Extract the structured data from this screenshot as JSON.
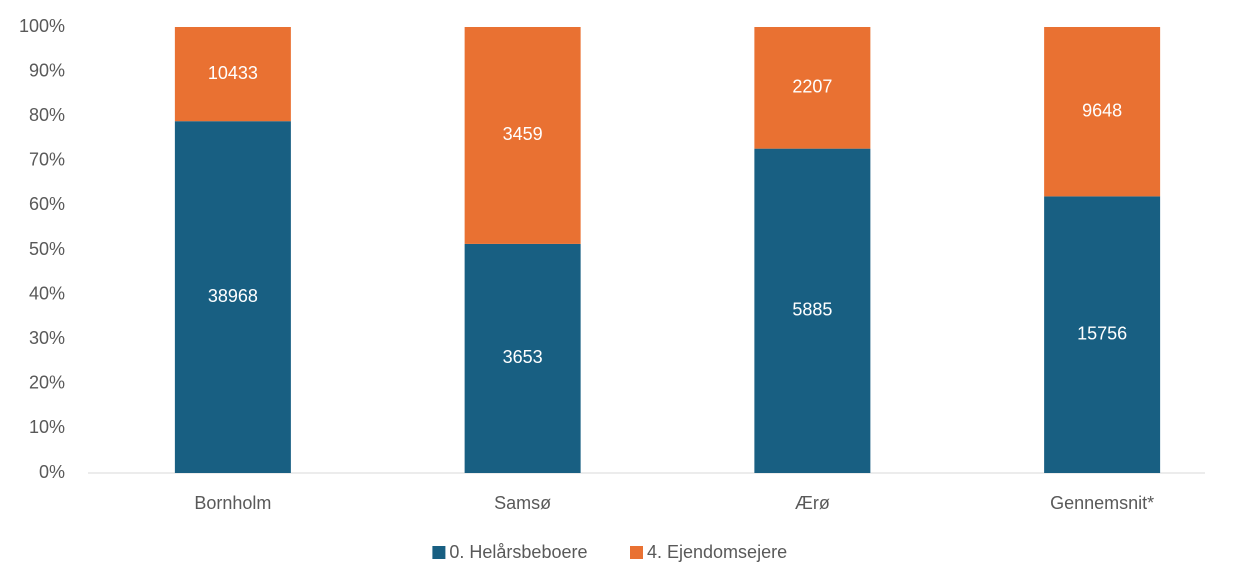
{
  "chart_data": {
    "type": "bar",
    "stacking": "percent",
    "categories": [
      "Bornholm",
      "Samsø",
      "Ærø",
      "Gennemsnit*"
    ],
    "series": [
      {
        "name": "0. Helårsbeboere",
        "color": "#185f82",
        "values": [
          38968,
          3653,
          5885,
          15756
        ]
      },
      {
        "name": "4. Ejendomsejere",
        "color": "#e97132",
        "values": [
          10433,
          3459,
          2207,
          9648
        ]
      }
    ],
    "ylim": [
      0,
      100
    ],
    "yticks": [
      {
        "value": 0,
        "label": "0%"
      },
      {
        "value": 10,
        "label": "10%"
      },
      {
        "value": 20,
        "label": "20%"
      },
      {
        "value": 30,
        "label": "30%"
      },
      {
        "value": 40,
        "label": "40%"
      },
      {
        "value": 50,
        "label": "50%"
      },
      {
        "value": 60,
        "label": "60%"
      },
      {
        "value": 70,
        "label": "70%"
      },
      {
        "value": 80,
        "label": "80%"
      },
      {
        "value": 90,
        "label": "90%"
      },
      {
        "value": 100,
        "label": "100%"
      }
    ],
    "grid": false,
    "legend": "bottom"
  }
}
